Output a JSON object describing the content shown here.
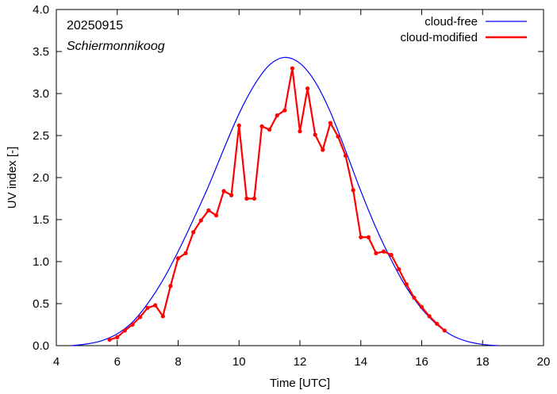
{
  "chart_data": {
    "type": "line",
    "annotations": {
      "date": "20250915",
      "location": "Schiermonnikoog"
    },
    "xlabel": "Time  [UTC]",
    "ylabel": "UV index  [-]",
    "xlim": [
      4,
      20
    ],
    "ylim": [
      0,
      4
    ],
    "xticks": [
      4,
      6,
      8,
      10,
      12,
      14,
      16,
      18,
      20
    ],
    "xtick_labels": [
      "4",
      "6",
      "8",
      "10",
      "12",
      "14",
      "16",
      "18",
      "20"
    ],
    "yticks": [
      0,
      0.5,
      1,
      1.5,
      2,
      2.5,
      3,
      3.5,
      4
    ],
    "ytick_labels": [
      "0.0",
      "0.5",
      "1.0",
      "1.5",
      "2.0",
      "2.5",
      "3.0",
      "3.5",
      "4.0"
    ],
    "grid": false,
    "legend_position": "top-right",
    "series": [
      {
        "name": "cloud-free",
        "color": "#0000ff",
        "marker": false,
        "x": [
          4.5,
          5.0,
          5.5,
          6.0,
          6.5,
          7.0,
          7.5,
          8.0,
          8.5,
          9.0,
          9.5,
          10.0,
          10.5,
          11.0,
          11.5,
          12.0,
          12.5,
          13.0,
          13.5,
          14.0,
          14.5,
          15.0,
          15.5,
          16.0,
          16.5,
          17.0,
          17.5,
          18.0,
          18.5
        ],
        "y": [
          0.0,
          0.02,
          0.06,
          0.14,
          0.28,
          0.5,
          0.78,
          1.12,
          1.5,
          1.9,
          2.34,
          2.76,
          3.1,
          3.34,
          3.43,
          3.36,
          3.14,
          2.78,
          2.32,
          1.84,
          1.4,
          1.02,
          0.69,
          0.44,
          0.25,
          0.12,
          0.05,
          0.015,
          0.0
        ]
      },
      {
        "name": "cloud-modified",
        "color": "#ff0000",
        "marker": true,
        "x": [
          5.75,
          6.0,
          6.25,
          6.5,
          6.75,
          7.0,
          7.25,
          7.5,
          7.75,
          8.0,
          8.25,
          8.5,
          8.75,
          9.0,
          9.25,
          9.5,
          9.75,
          10.0,
          10.25,
          10.5,
          10.75,
          11.0,
          11.25,
          11.5,
          11.75,
          12.0,
          12.25,
          12.5,
          12.75,
          13.0,
          13.25,
          13.5,
          13.75,
          14.0,
          14.25,
          14.5,
          14.75,
          15.0,
          15.25,
          15.5,
          15.75,
          16.0,
          16.25,
          16.5,
          16.75
        ],
        "y": [
          0.07,
          0.1,
          0.18,
          0.25,
          0.34,
          0.45,
          0.48,
          0.35,
          0.71,
          1.04,
          1.1,
          1.35,
          1.49,
          1.61,
          1.55,
          1.84,
          1.79,
          2.62,
          1.75,
          1.75,
          2.61,
          2.57,
          2.74,
          2.8,
          3.3,
          2.55,
          3.06,
          2.51,
          2.33,
          2.65,
          2.49,
          2.26,
          1.85,
          1.29,
          1.29,
          1.1,
          1.12,
          1.08,
          0.91,
          0.73,
          0.57,
          0.46,
          0.35,
          0.26,
          0.18
        ]
      }
    ]
  }
}
